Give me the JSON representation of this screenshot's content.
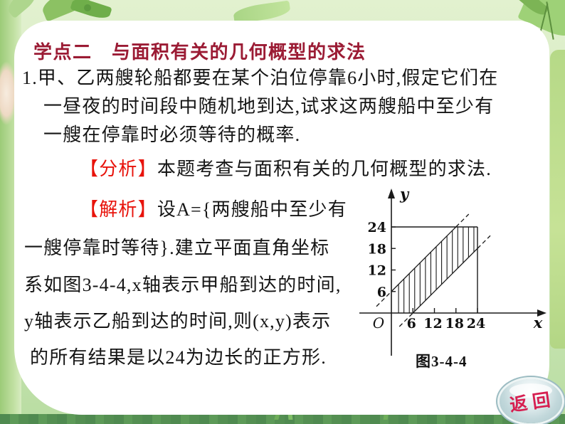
{
  "slide": {
    "title": "学点二　与面积有关的几何概型的求法",
    "problem": {
      "line1": "1.甲、乙两艘轮船都要在某个泊位停靠6小时,假定它们在",
      "line2": "一昼夜的时间段中随机地到达,试求这两艘船中至少有",
      "line3": "一艘在停靠时必须等待的概率."
    },
    "analysis": {
      "tag": "【分析】",
      "text": "本题考查与面积有关的几何概型的求法."
    },
    "solution": {
      "tag": "【解析】",
      "line1": "设A={两艘船中至少有",
      "line2": "一艘停靠时等待}.建立平面直角坐标",
      "line3": "系如图3-4-4,x轴表示甲船到达的时间,",
      "line4": "y轴表示乙船到达的时间,则(x,y)表示",
      "line5": "的所有结果是以24为边长的正方形."
    },
    "figure": {
      "caption": "图3-4-4",
      "x_label": "x",
      "y_label": "y",
      "origin_label": "O",
      "x_ticks": [
        6,
        12,
        18,
        24
      ],
      "y_ticks": [
        6,
        12,
        18,
        24
      ],
      "square_side": 24,
      "band_halfwidth": 6,
      "upper_boundary": "y = x + 6",
      "lower_boundary": "y = x - 6",
      "region": "vertical-hatched band |x − y| ≤ 6 clipped to square [0,24]×[0,24]"
    },
    "back_button": {
      "label": "返回"
    },
    "colors": {
      "title-red": "#9b1b34",
      "bracket-red": "#e8130b",
      "back-red": "#d61e50",
      "ink": "#151515"
    }
  }
}
